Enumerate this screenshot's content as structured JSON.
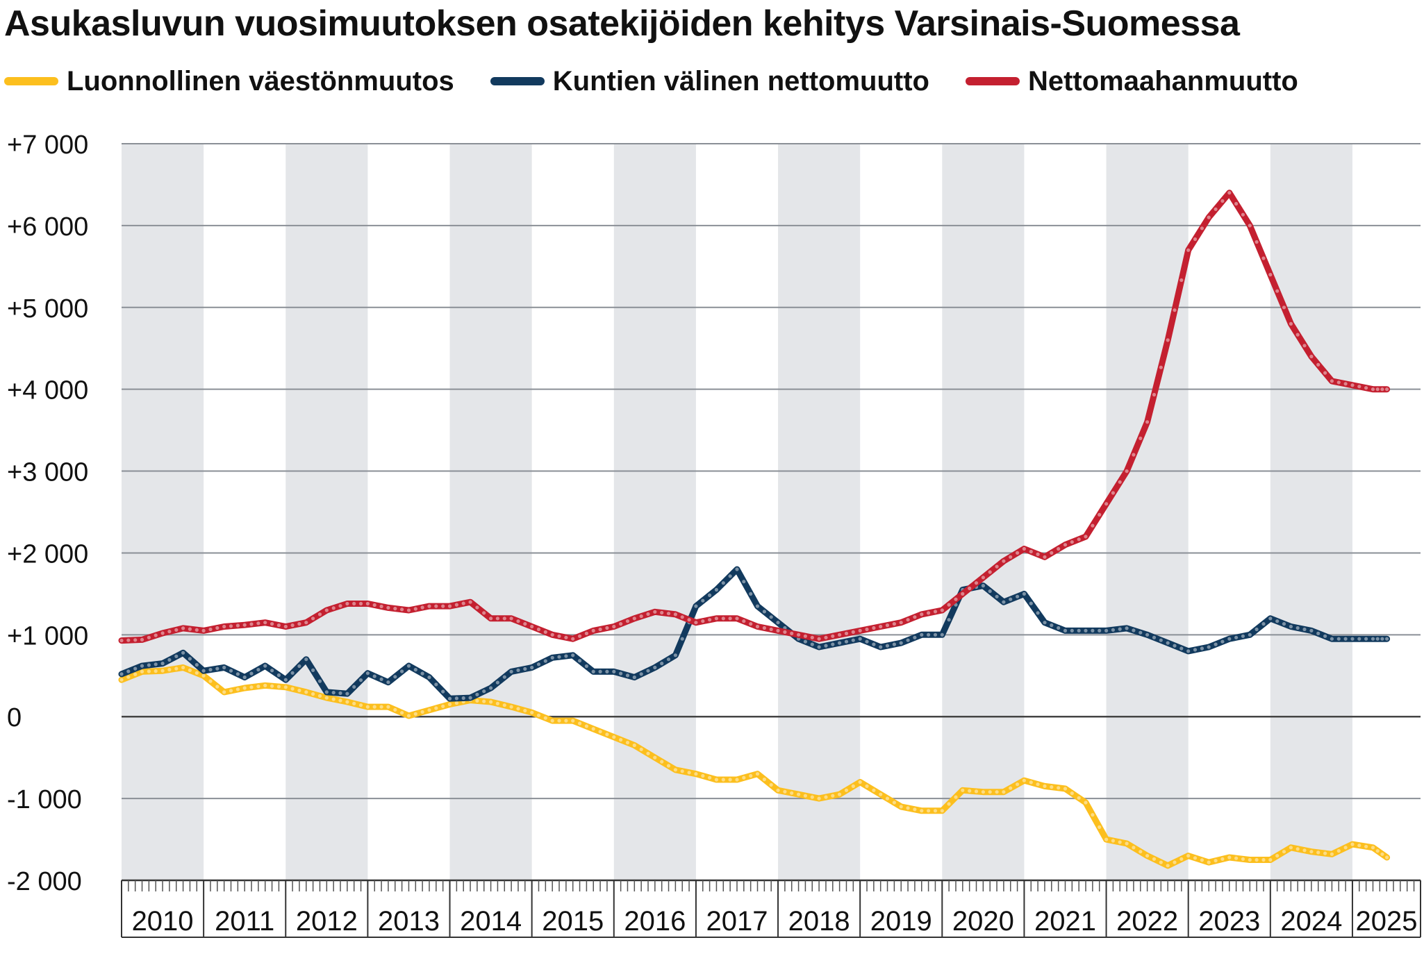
{
  "chart_data": {
    "type": "line",
    "title": "Asukasluvun vuosimuutoksen osatekijöiden kehitys Varsinais-Suomessa",
    "x_categories": [
      "2010",
      "2011",
      "2012",
      "2013",
      "2014",
      "2015",
      "2016",
      "2017",
      "2018",
      "2019",
      "2020",
      "2021",
      "2022",
      "2023",
      "2024",
      "2025"
    ],
    "y_tick_labels": [
      "-2 000",
      "-1 000",
      "0",
      "+1 000",
      "+2 000",
      "+3 000",
      "+4 000",
      "+5 000",
      "+6 000",
      "+7 000"
    ],
    "y_tick_values": [
      -2000,
      -1000,
      0,
      1000,
      2000,
      3000,
      4000,
      5000,
      6000,
      7000
    ],
    "ylim": [
      -2000,
      7000
    ],
    "xlim": [
      2010.0,
      2025.83
    ],
    "grid": true,
    "alternating_year_bands": true,
    "band_color": "#e4e6e9",
    "legend_position": "top-left",
    "series": [
      {
        "name": "Luonnollinen väestönmuutos",
        "color": "#fcbf1e",
        "x": [
          2010.0,
          2010.25,
          2010.5,
          2010.75,
          2011.0,
          2011.25,
          2011.5,
          2011.75,
          2012.0,
          2012.25,
          2012.5,
          2012.75,
          2013.0,
          2013.25,
          2013.5,
          2013.75,
          2014.0,
          2014.25,
          2014.5,
          2014.75,
          2015.0,
          2015.25,
          2015.5,
          2015.75,
          2016.0,
          2016.25,
          2016.5,
          2016.75,
          2017.0,
          2017.25,
          2017.5,
          2017.75,
          2018.0,
          2018.25,
          2018.5,
          2018.75,
          2019.0,
          2019.25,
          2019.5,
          2019.75,
          2020.0,
          2020.25,
          2020.5,
          2020.75,
          2021.0,
          2021.25,
          2021.5,
          2021.75,
          2022.0,
          2022.25,
          2022.5,
          2022.75,
          2023.0,
          2023.25,
          2023.5,
          2023.75,
          2024.0,
          2024.25,
          2024.5,
          2024.75,
          2025.0,
          2025.25,
          2025.42
        ],
        "y": [
          450,
          550,
          560,
          600,
          500,
          300,
          350,
          380,
          360,
          300,
          230,
          180,
          120,
          120,
          10,
          80,
          150,
          200,
          180,
          120,
          50,
          -50,
          -50,
          -150,
          -250,
          -350,
          -500,
          -650,
          -700,
          -770,
          -770,
          -700,
          -900,
          -950,
          -1000,
          -950,
          -800,
          -950,
          -1100,
          -1150,
          -1150,
          -900,
          -920,
          -920,
          -780,
          -850,
          -880,
          -1050,
          -1500,
          -1550,
          -1700,
          -1820,
          -1700,
          -1780,
          -1720,
          -1750,
          -1750,
          -1600,
          -1650,
          -1680,
          -1560,
          -1600,
          -1720
        ]
      },
      {
        "name": "Kuntien välinen nettomuutto",
        "color": "#123a5e",
        "x": [
          2010.0,
          2010.25,
          2010.5,
          2010.75,
          2011.0,
          2011.25,
          2011.5,
          2011.75,
          2012.0,
          2012.25,
          2012.5,
          2012.75,
          2013.0,
          2013.25,
          2013.5,
          2013.75,
          2014.0,
          2014.25,
          2014.5,
          2014.75,
          2015.0,
          2015.25,
          2015.5,
          2015.75,
          2016.0,
          2016.25,
          2016.5,
          2016.75,
          2017.0,
          2017.25,
          2017.5,
          2017.75,
          2018.0,
          2018.25,
          2018.5,
          2018.75,
          2019.0,
          2019.25,
          2019.5,
          2019.75,
          2020.0,
          2020.25,
          2020.5,
          2020.75,
          2021.0,
          2021.25,
          2021.5,
          2021.75,
          2022.0,
          2022.25,
          2022.5,
          2022.75,
          2023.0,
          2023.25,
          2023.5,
          2023.75,
          2024.0,
          2024.25,
          2024.5,
          2024.75,
          2025.0,
          2025.25,
          2025.42
        ],
        "y": [
          520,
          620,
          650,
          780,
          560,
          600,
          480,
          620,
          450,
          700,
          300,
          280,
          530,
          420,
          620,
          480,
          220,
          230,
          350,
          550,
          600,
          720,
          750,
          550,
          550,
          480,
          600,
          750,
          1350,
          1550,
          1800,
          1350,
          1150,
          950,
          850,
          900,
          950,
          850,
          900,
          1000,
          1000,
          1550,
          1600,
          1400,
          1500,
          1150,
          1050,
          1050,
          1050,
          1080,
          1000,
          900,
          800,
          850,
          950,
          1000,
          1200,
          1100,
          1050,
          950,
          950,
          950,
          950
        ]
      },
      {
        "name": "Nettomaahanmuutto",
        "color": "#c42030",
        "x": [
          2010.0,
          2010.25,
          2010.5,
          2010.75,
          2011.0,
          2011.25,
          2011.5,
          2011.75,
          2012.0,
          2012.25,
          2012.5,
          2012.75,
          2013.0,
          2013.25,
          2013.5,
          2013.75,
          2014.0,
          2014.25,
          2014.5,
          2014.75,
          2015.0,
          2015.25,
          2015.5,
          2015.75,
          2016.0,
          2016.25,
          2016.5,
          2016.75,
          2017.0,
          2017.25,
          2017.5,
          2017.75,
          2018.0,
          2018.25,
          2018.5,
          2018.75,
          2019.0,
          2019.25,
          2019.5,
          2019.75,
          2020.0,
          2020.25,
          2020.5,
          2020.75,
          2021.0,
          2021.25,
          2021.5,
          2021.75,
          2022.0,
          2022.25,
          2022.5,
          2022.75,
          2023.0,
          2023.25,
          2023.5,
          2023.75,
          2024.0,
          2024.25,
          2024.5,
          2024.75,
          2025.0,
          2025.25,
          2025.42
        ],
        "y": [
          930,
          940,
          1020,
          1080,
          1050,
          1100,
          1120,
          1150,
          1100,
          1150,
          1300,
          1380,
          1380,
          1330,
          1300,
          1350,
          1350,
          1400,
          1200,
          1200,
          1100,
          1000,
          950,
          1050,
          1100,
          1200,
          1280,
          1250,
          1150,
          1200,
          1200,
          1100,
          1050,
          1000,
          950,
          1000,
          1050,
          1100,
          1150,
          1250,
          1300,
          1500,
          1700,
          1900,
          2050,
          1950,
          2100,
          2200,
          2600,
          3000,
          3600,
          4600,
          5700,
          6100,
          6400,
          6000,
          5400,
          4800,
          4400,
          4100,
          4050,
          4000,
          4000
        ]
      }
    ]
  }
}
